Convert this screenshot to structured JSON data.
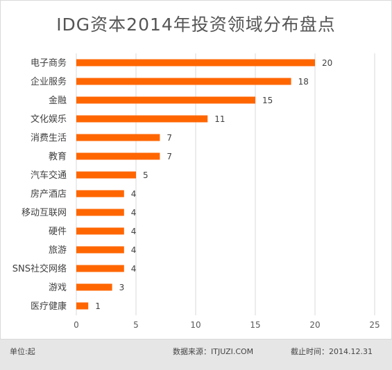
{
  "title": "IDG资本2014年投资领域分布盘点",
  "footer": {
    "unit": "单位:起",
    "source": "数据来源：ITJUZI.COM",
    "cutoff": "截止时间：2014.12.31"
  },
  "colors": {
    "bar": "#ff6600",
    "grid": "#d9d9d9"
  },
  "chart_data": {
    "type": "bar",
    "orientation": "horizontal",
    "title": "IDG资本2014年投资领域分布盘点",
    "categories": [
      "电子商务",
      "企业服务",
      "金融",
      "文化娱乐",
      "消费生活",
      "教育",
      "汽车交通",
      "房产酒店",
      "移动互联网",
      "硬件",
      "旅游",
      "SNS社交网络",
      "游戏",
      "医疗健康"
    ],
    "values": [
      20,
      18,
      15,
      11,
      7,
      7,
      5,
      4,
      4,
      4,
      4,
      4,
      3,
      1
    ],
    "xlim": [
      0,
      25
    ],
    "xticks": [
      0,
      5,
      10,
      15,
      20,
      25
    ],
    "grid": true,
    "data_labels": true
  }
}
